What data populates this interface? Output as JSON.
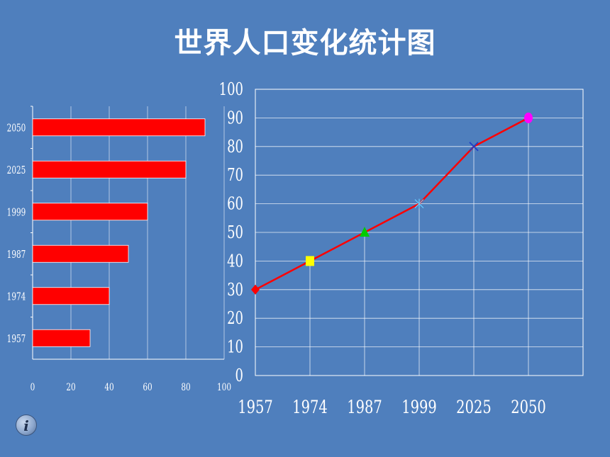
{
  "title": "世界人口变化统计图",
  "chart_data": [
    {
      "type": "bar",
      "orientation": "horizontal",
      "categories": [
        "1957",
        "1974",
        "1987",
        "1999",
        "2025",
        "2050"
      ],
      "values": [
        30,
        40,
        50,
        60,
        80,
        90
      ],
      "xlim": [
        0,
        100
      ],
      "xticks": [
        "0",
        "20",
        "40",
        "60",
        "80",
        "100"
      ],
      "grid": true,
      "bar_color": "#ff0000"
    },
    {
      "type": "line",
      "categories": [
        "1957",
        "1974",
        "1987",
        "1999",
        "2025",
        "2050"
      ],
      "values": [
        30,
        40,
        50,
        60,
        80,
        90
      ],
      "ylim": [
        0,
        100
      ],
      "yticks": [
        "0",
        "10",
        "20",
        "30",
        "40",
        "50",
        "60",
        "70",
        "80",
        "90",
        "100"
      ],
      "grid": true,
      "line_color": "#ff0000",
      "marker_colors": [
        "#ff0000",
        "#ffff00",
        "#00cc00",
        "#66ccff",
        "#1f3fc8",
        "#ff00ff"
      ],
      "marker_shapes": [
        "diamond",
        "square",
        "triangle",
        "asterisk",
        "cross",
        "circle"
      ]
    }
  ],
  "colors": {
    "background": "#4f7fbd",
    "text": "#ffffff",
    "grid": "#ffffff"
  },
  "info_icon": "info-icon"
}
